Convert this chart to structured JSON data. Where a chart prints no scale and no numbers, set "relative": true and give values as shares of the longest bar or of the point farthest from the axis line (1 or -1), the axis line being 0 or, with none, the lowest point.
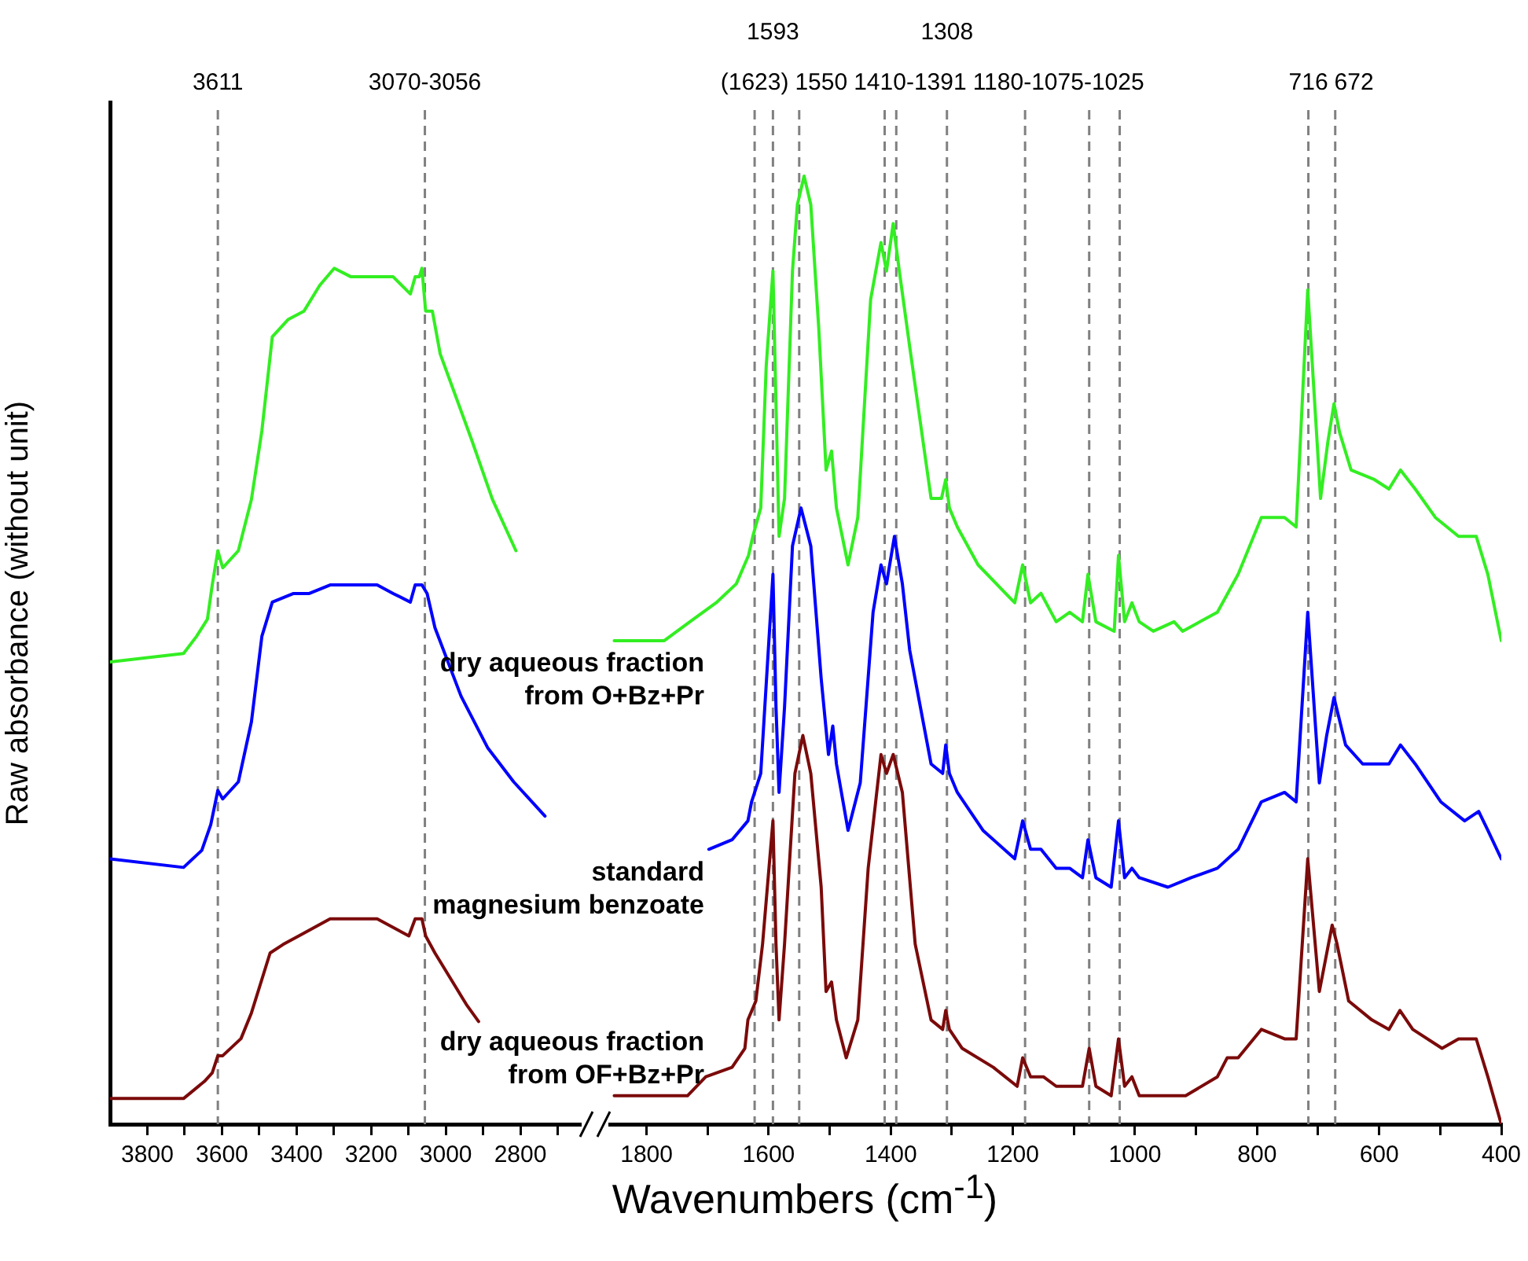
{
  "chart_data": [
    {
      "type": "line",
      "relative": true,
      "ylabel": "Raw absorbance (without unit)",
      "tick_labels": "x",
      "line_style": "solid",
      "marker": "none",
      "xlim": [
        3900,
        2640
      ],
      "xticks": [
        3800,
        {
          "value": 3700,
          "label": null
        },
        3600,
        {
          "value": 3500,
          "label": null
        },
        3400,
        {
          "value": 3300,
          "label": null
        },
        3200,
        {
          "value": 3100,
          "label": null
        },
        3000,
        {
          "value": 2900,
          "label": null
        },
        2800,
        {
          "value": 2700,
          "label": null
        }
      ],
      "annotations": [
        "3070-3056"
      ],
      "ref_lines": [
        {
          "axis": "x",
          "value": 3611,
          "label": "3611",
          "color": "#808080",
          "line_style": "dashed"
        },
        {
          "axis": "x",
          "value": 3056,
          "label": null,
          "color": "#808080",
          "line_style": "dashed"
        }
      ],
      "series": [
        {
          "color": "#33ee22",
          "x": [
            3900,
            3703,
            3668,
            3639,
            3626,
            3611,
            3598,
            3556,
            3521,
            3493,
            3465,
            3423,
            3380,
            3338,
            3299,
            3254,
            3184,
            3141,
            3095,
            3082,
            3071,
            3064,
            3054,
            3036,
            3015,
            2973,
            2931,
            2875,
            2812
          ],
          "values": [
            0.54,
            0.55,
            0.57,
            0.59,
            0.63,
            0.67,
            0.65,
            0.67,
            0.73,
            0.81,
            0.92,
            0.94,
            0.95,
            0.98,
            1,
            0.99,
            0.99,
            0.99,
            0.97,
            0.99,
            0.99,
            1,
            0.95,
            0.95,
            0.9,
            0.85,
            0.8,
            0.73,
            0.67
          ]
        },
        {
          "color": "#0000ff",
          "x": [
            3900,
            3703,
            3654,
            3630,
            3611,
            3598,
            3556,
            3521,
            3493,
            3465,
            3408,
            3366,
            3310,
            3240,
            3184,
            3141,
            3095,
            3082,
            3064,
            3050,
            3029,
            2959,
            2888,
            2818,
            2734
          ],
          "values": [
            0.31,
            0.3,
            0.32,
            0.35,
            0.39,
            0.38,
            0.4,
            0.47,
            0.57,
            0.61,
            0.62,
            0.62,
            0.63,
            0.63,
            0.63,
            0.62,
            0.61,
            0.63,
            0.63,
            0.62,
            0.58,
            0.5,
            0.44,
            0.4,
            0.36
          ]
        },
        {
          "color": "#7b0a0a",
          "x": [
            3900,
            3703,
            3647,
            3626,
            3611,
            3598,
            3549,
            3521,
            3471,
            3436,
            3394,
            3310,
            3254,
            3184,
            3099,
            3082,
            3064,
            3054,
            3029,
            2973,
            2945,
            2912
          ],
          "values": [
            0.03,
            0.03,
            0.05,
            0.06,
            0.08,
            0.08,
            0.1,
            0.13,
            0.2,
            0.21,
            0.22,
            0.24,
            0.24,
            0.24,
            0.22,
            0.24,
            0.24,
            0.22,
            0.2,
            0.16,
            0.14,
            0.12
          ]
        }
      ]
    },
    {
      "type": "line",
      "relative": true,
      "xlabel": "Wavenumbers (cm$^{-1}$)",
      "tick_labels": "x",
      "line_style": "solid",
      "marker": "none",
      "xlim": [
        1860,
        400
      ],
      "xticks": [
        1800,
        {
          "value": 1700,
          "label": null
        },
        1600,
        {
          "value": 1500,
          "label": null
        },
        1400,
        {
          "value": 1300,
          "label": null
        },
        1200,
        {
          "value": 1100,
          "label": null
        },
        1000,
        {
          "value": 900,
          "label": null
        },
        800,
        {
          "value": 700,
          "label": null
        },
        600,
        {
          "value": 500,
          "label": null
        },
        400
      ],
      "ref_lines": [
        {
          "axis": "x",
          "value": 1623,
          "label": "(1623)",
          "color": "#808080",
          "line_style": "dashed"
        },
        {
          "axis": "x",
          "value": 1593,
          "label": "1593",
          "color": "#808080",
          "line_style": "dashed"
        },
        {
          "axis": "x",
          "value": 1550,
          "label": "1550",
          "color": "#808080",
          "line_style": "dashed"
        },
        {
          "axis": "x",
          "value": 1410,
          "label": "1410-1391",
          "color": "#808080",
          "line_style": "dashed"
        },
        {
          "axis": "x",
          "value": 1391,
          "label": null,
          "color": "#808080",
          "line_style": "dashed"
        },
        {
          "axis": "x",
          "value": 1308,
          "label": "1308",
          "color": "#808080",
          "line_style": "dashed"
        },
        {
          "axis": "x",
          "value": 1180,
          "label": "1180-1075-1025",
          "color": "#808080",
          "line_style": "dashed"
        },
        {
          "axis": "x",
          "value": 1075,
          "label": null,
          "color": "#808080",
          "line_style": "dashed"
        },
        {
          "axis": "x",
          "value": 1025,
          "label": null,
          "color": "#808080",
          "line_style": "dashed"
        },
        {
          "axis": "x",
          "value": 716,
          "label": "716",
          "color": "#808080",
          "line_style": "dashed"
        },
        {
          "axis": "x",
          "value": 672,
          "label": "672",
          "color": "#808080",
          "line_style": "dashed"
        }
      ],
      "series": [
        {
          "name": "dry aqueous fraction\nfrom O+Bz+Pr",
          "color": "#33ee22",
          "x": [
            1853,
            1823,
            1771,
            1729,
            1686,
            1653,
            1633,
            1626,
            1613,
            1604,
            1593,
            1588,
            1583,
            1574,
            1561,
            1553,
            1542,
            1531,
            1518,
            1506,
            1497,
            1489,
            1470,
            1454,
            1433,
            1416,
            1407,
            1396,
            1386,
            1369,
            1334,
            1317,
            1310,
            1304,
            1291,
            1257,
            1197,
            1184,
            1171,
            1154,
            1129,
            1107,
            1086,
            1077,
            1064,
            1034,
            1027,
            1017,
            1005,
            993,
            970,
            936,
            922,
            865,
            831,
            793,
            755,
            736,
            717,
            696,
            684,
            674,
            665,
            646,
            608,
            584,
            565,
            541,
            508,
            470,
            441,
            422,
            400
          ],
          "values": [
            0.51,
            0.51,
            0.51,
            0.53,
            0.55,
            0.57,
            0.6,
            0.62,
            0.65,
            0.8,
            0.9,
            0.76,
            0.62,
            0.66,
            0.9,
            0.97,
            1,
            0.97,
            0.84,
            0.69,
            0.71,
            0.65,
            0.59,
            0.64,
            0.87,
            0.93,
            0.9,
            0.95,
            0.9,
            0.82,
            0.66,
            0.66,
            0.68,
            0.65,
            0.63,
            0.59,
            0.55,
            0.59,
            0.55,
            0.56,
            0.53,
            0.54,
            0.53,
            0.58,
            0.53,
            0.52,
            0.6,
            0.53,
            0.55,
            0.53,
            0.52,
            0.53,
            0.52,
            0.54,
            0.58,
            0.64,
            0.64,
            0.63,
            0.88,
            0.66,
            0.72,
            0.76,
            0.73,
            0.69,
            0.68,
            0.67,
            0.69,
            0.67,
            0.64,
            0.62,
            0.62,
            0.58,
            0.51
          ]
        },
        {
          "name": "standard\nmagnesium benzoate",
          "color": "#0000ff",
          "x": [
            1698,
            1660,
            1634,
            1628,
            1613,
            1593,
            1588,
            1583,
            1574,
            1561,
            1547,
            1531,
            1514,
            1502,
            1495,
            1489,
            1470,
            1450,
            1429,
            1416,
            1407,
            1394,
            1381,
            1369,
            1334,
            1315,
            1310,
            1304,
            1291,
            1249,
            1197,
            1184,
            1171,
            1154,
            1129,
            1107,
            1086,
            1077,
            1064,
            1039,
            1027,
            1017,
            1005,
            993,
            946,
            908,
            865,
            831,
            793,
            755,
            736,
            717,
            698,
            686,
            674,
            655,
            627,
            584,
            565,
            541,
            499,
            460,
            437,
            422,
            400
          ],
          "values": [
            0.29,
            0.3,
            0.32,
            0.34,
            0.37,
            0.58,
            0.44,
            0.35,
            0.44,
            0.61,
            0.65,
            0.61,
            0.47,
            0.39,
            0.42,
            0.38,
            0.31,
            0.36,
            0.54,
            0.59,
            0.57,
            0.62,
            0.57,
            0.5,
            0.38,
            0.37,
            0.4,
            0.37,
            0.35,
            0.31,
            0.28,
            0.32,
            0.29,
            0.29,
            0.27,
            0.27,
            0.26,
            0.3,
            0.26,
            0.25,
            0.32,
            0.26,
            0.27,
            0.26,
            0.25,
            0.26,
            0.27,
            0.29,
            0.34,
            0.35,
            0.34,
            0.54,
            0.36,
            0.41,
            0.45,
            0.4,
            0.38,
            0.38,
            0.4,
            0.38,
            0.34,
            0.32,
            0.33,
            0.31,
            0.28
          ]
        },
        {
          "name": "dry aqueous fraction\nfrom OF+Bz+Pr",
          "color": "#7b0a0a",
          "x": [
            1853,
            1797,
            1733,
            1703,
            1660,
            1639,
            1634,
            1621,
            1610,
            1593,
            1588,
            1583,
            1574,
            1557,
            1544,
            1531,
            1514,
            1506,
            1497,
            1489,
            1473,
            1454,
            1437,
            1416,
            1407,
            1396,
            1381,
            1360,
            1334,
            1315,
            1310,
            1304,
            1283,
            1232,
            1193,
            1184,
            1171,
            1150,
            1129,
            1107,
            1086,
            1075,
            1064,
            1039,
            1027,
            1017,
            1005,
            993,
            965,
            917,
            865,
            849,
            831,
            793,
            755,
            736,
            717,
            698,
            686,
            677,
            669,
            650,
            612,
            584,
            566,
            545,
            497,
            470,
            441,
            422,
            400
          ],
          "values": [
            0.03,
            0.03,
            0.03,
            0.05,
            0.06,
            0.08,
            0.11,
            0.13,
            0.19,
            0.32,
            0.19,
            0.11,
            0.19,
            0.37,
            0.41,
            0.37,
            0.25,
            0.14,
            0.15,
            0.11,
            0.07,
            0.11,
            0.27,
            0.39,
            0.37,
            0.39,
            0.35,
            0.19,
            0.11,
            0.1,
            0.12,
            0.1,
            0.08,
            0.06,
            0.04,
            0.07,
            0.05,
            0.05,
            0.04,
            0.04,
            0.04,
            0.08,
            0.04,
            0.03,
            0.09,
            0.04,
            0.05,
            0.03,
            0.03,
            0.03,
            0.05,
            0.07,
            0.07,
            0.1,
            0.09,
            0.09,
            0.28,
            0.14,
            0.18,
            0.21,
            0.19,
            0.13,
            0.11,
            0.1,
            0.12,
            0.1,
            0.08,
            0.09,
            0.09,
            0.05,
            0.0
          ]
        }
      ]
    }
  ]
}
